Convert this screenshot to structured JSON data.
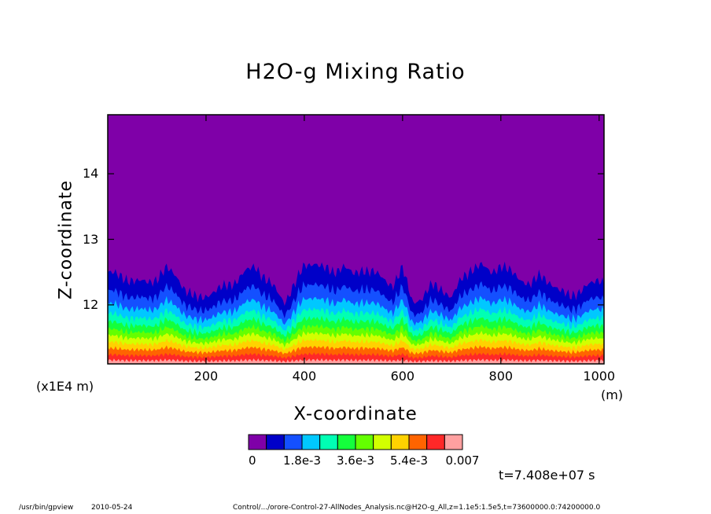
{
  "chart_data": {
    "type": "heatmap",
    "title": "H2O-g Mixing Ratio",
    "xlabel": "X-coordinate",
    "ylabel": "Z-coordinate",
    "x_unit": "(m)",
    "y_unit": "(x1E4 m)",
    "xlim": [
      0,
      1010
    ],
    "ylim": [
      11.1,
      14.9
    ],
    "x_ticks": [
      "200",
      "400",
      "600",
      "800",
      "1000"
    ],
    "x_tick_values": [
      200,
      400,
      600,
      800,
      1000
    ],
    "y_ticks": [
      "14",
      "13",
      "12"
    ],
    "y_tick_values": [
      14,
      13,
      12
    ],
    "colorbar": {
      "colors": [
        "#7f00a8",
        "#0000c8",
        "#1450ff",
        "#00c8ff",
        "#00ffb4",
        "#14ff3c",
        "#64ff00",
        "#d2ff00",
        "#ffd200",
        "#ff6400",
        "#ff2828",
        "#ffa0a0"
      ],
      "labels": [
        "0",
        "1.8e-3",
        "3.6e-3",
        "5.4e-3",
        "0.007"
      ]
    },
    "front_profile": {
      "x": [
        0,
        20,
        40,
        60,
        80,
        100,
        120,
        140,
        160,
        180,
        200,
        220,
        240,
        260,
        280,
        300,
        320,
        340,
        360,
        380,
        400,
        420,
        440,
        460,
        480,
        500,
        520,
        540,
        560,
        580,
        600,
        620,
        640,
        660,
        680,
        700,
        720,
        740,
        760,
        780,
        800,
        820,
        840,
        860,
        880,
        900,
        920,
        940,
        960,
        980,
        1000,
        1010
      ],
      "top_z": [
        12.5,
        12.45,
        12.4,
        12.35,
        12.35,
        12.4,
        12.55,
        12.45,
        12.2,
        12.1,
        12.15,
        12.2,
        12.3,
        12.35,
        12.5,
        12.6,
        12.4,
        12.25,
        12.05,
        12.3,
        12.6,
        12.65,
        12.55,
        12.5,
        12.6,
        12.45,
        12.55,
        12.5,
        12.4,
        12.3,
        12.55,
        12.05,
        12.1,
        12.3,
        12.25,
        12.1,
        12.4,
        12.55,
        12.6,
        12.5,
        12.6,
        12.5,
        12.4,
        12.3,
        12.45,
        12.35,
        12.2,
        12.15,
        12.2,
        12.3,
        12.4,
        12.35
      ]
    }
  },
  "timestamp": "t=7.408e+07 s",
  "footer": {
    "program": "/usr/bin/gpview",
    "date": "2010-05-24",
    "source": "Control/.../orore-Control-27-AllNodes_Analysis.nc@H2O-g_All,z=1.1e5:1.5e5,t=73600000.0:74200000.0"
  }
}
